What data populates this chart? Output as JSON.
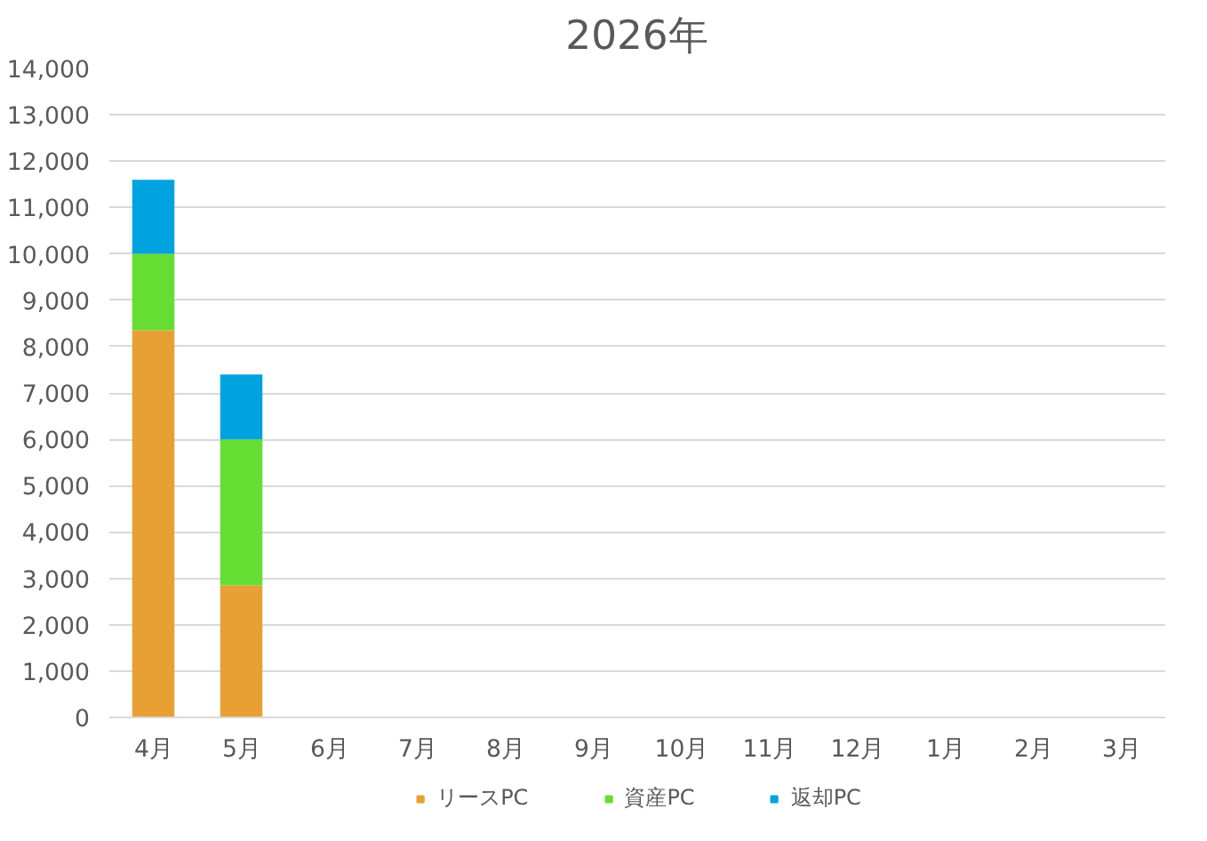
{
  "chart_data": {
    "type": "bar",
    "title": "2026年",
    "stacked": true,
    "categories": [
      "4月",
      "5月",
      "6月",
      "7月",
      "8月",
      "9月",
      "10月",
      "11月",
      "12月",
      "1月",
      "2月",
      "3月"
    ],
    "series": [
      {
        "name": "リースPC",
        "color": "#e89f33",
        "values": [
          8350,
          2850,
          null,
          null,
          null,
          null,
          null,
          null,
          null,
          null,
          null,
          null
        ]
      },
      {
        "name": "資産PC",
        "color": "#66dd33",
        "values": [
          1650,
          3150,
          null,
          null,
          null,
          null,
          null,
          null,
          null,
          null,
          null,
          null
        ]
      },
      {
        "name": "返却PC",
        "color": "#00a2e0",
        "values": [
          1600,
          1400,
          null,
          null,
          null,
          null,
          null,
          null,
          null,
          null,
          null,
          null
        ]
      }
    ],
    "ylim": [
      0,
      14000
    ],
    "yticks": [
      0,
      {
        "value": 1000,
        "label": "1,000"
      },
      {
        "value": 2000,
        "label": "2,000"
      },
      {
        "value": 3000,
        "label": "3,000"
      },
      {
        "value": 4000,
        "label": "4,000"
      },
      {
        "value": 5000,
        "label": "5,000"
      },
      {
        "value": 6000,
        "label": "6,000"
      },
      {
        "value": 7000,
        "label": "7,000"
      },
      {
        "value": 8000,
        "label": "8,000"
      },
      {
        "value": 9000,
        "label": "9,000"
      },
      {
        "value": 10000,
        "label": "10,000"
      },
      {
        "value": 11000,
        "label": "11,000"
      },
      {
        "value": 12000,
        "label": "12,000"
      },
      {
        "value": 13000,
        "label": "13,000"
      },
      {
        "value": 14000,
        "label": "14,000"
      }
    ],
    "grid": "y",
    "legend": "bottom"
  }
}
